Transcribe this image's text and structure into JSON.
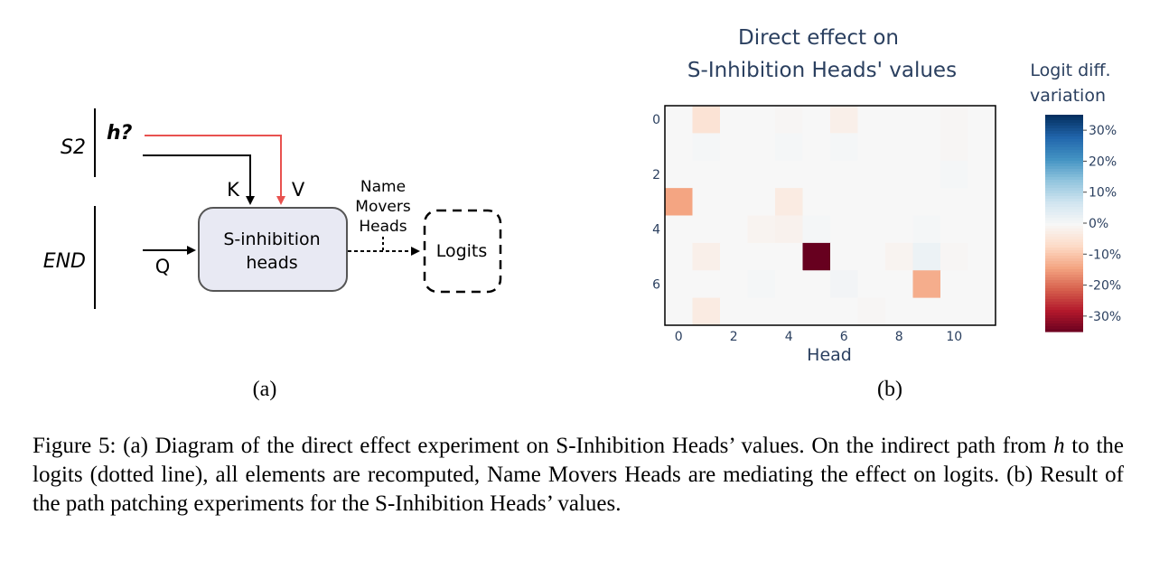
{
  "figure": {
    "panel_a": {
      "label": "(a)",
      "s2_label": "S2",
      "end_label": "END",
      "h_label": "h?",
      "k_label": "K",
      "v_label": "V",
      "q_label": "Q",
      "box_line1": "S-inhibition",
      "box_line2": "heads",
      "nmh_line1": "Name",
      "nmh_line2": "Movers",
      "nmh_line3": "Heads",
      "logits_label": "Logits",
      "colors": {
        "value_arrow": "#e8524f",
        "box_fill": "#e8e9f3",
        "box_stroke": "#555555"
      }
    },
    "panel_b": {
      "label": "(b)"
    }
  },
  "chart_data": {
    "type": "heatmap",
    "title_line1": "Direct effect on",
    "title_line2": "S-Inhibition Heads' values",
    "xlabel": "Head",
    "ylabel": "",
    "x_ticks": [
      "0",
      "2",
      "4",
      "6",
      "8",
      "10"
    ],
    "y_ticks": [
      "0",
      "2",
      "4",
      "6"
    ],
    "n_heads": 12,
    "n_layers": 8,
    "colorbar_title_line1": "Logit diff.",
    "colorbar_title_line2": "variation",
    "colorbar_ticks": [
      "30%",
      "20%",
      "10%",
      "0%",
      "-10%",
      "-20%",
      "-30%"
    ],
    "colorbar_range": [
      -35,
      35
    ],
    "colorscale": "RdBu",
    "values": [
      [
        0,
        -5,
        0,
        0,
        -0.5,
        0,
        -2,
        0,
        0,
        0,
        -0.5,
        0
      ],
      [
        0,
        0.5,
        0,
        0,
        0.5,
        0,
        0.5,
        0,
        0,
        0,
        -0.5,
        0
      ],
      [
        0,
        0,
        0,
        0,
        0,
        0,
        0,
        0,
        0,
        0,
        0.5,
        0
      ],
      [
        -14,
        0,
        0,
        0,
        -3,
        0,
        0,
        0,
        0,
        0,
        0,
        0
      ],
      [
        0,
        0,
        0,
        -1,
        -1.5,
        0.5,
        0,
        0,
        0,
        0.5,
        0,
        0
      ],
      [
        0,
        -2,
        0,
        0,
        0,
        -35,
        0,
        0,
        -1,
        2,
        -0.5,
        0
      ],
      [
        0,
        0,
        0,
        0.5,
        0,
        0,
        1,
        0,
        0,
        -13,
        0,
        0
      ],
      [
        0,
        -3,
        0,
        0,
        0,
        0,
        0,
        -0.5,
        0,
        0,
        0,
        0
      ]
    ]
  },
  "caption": {
    "part1": "Figure 5: (a) Diagram of the direct effect experiment on S-Inhibition Heads’ values. On the indirect path from ",
    "h": "h",
    "part2": " to the logits (dotted line), all elements are recomputed, Name Movers Heads are mediating the effect on logits. (b) Result of the path patching experiments for the S-Inhibition Heads’ values."
  }
}
